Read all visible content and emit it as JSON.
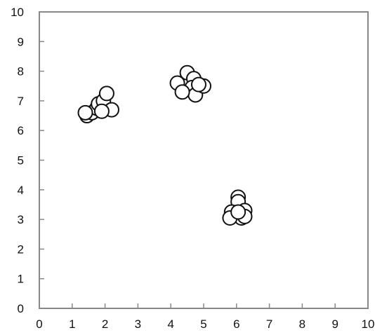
{
  "chart_data": {
    "type": "scatter",
    "title": "",
    "xlabel": "",
    "ylabel": "",
    "xlim": [
      0,
      10
    ],
    "ylim": [
      0,
      10
    ],
    "x_ticks": [
      "0",
      "1",
      "2",
      "3",
      "4",
      "5",
      "6",
      "7",
      "8",
      "9",
      "10"
    ],
    "y_ticks": [
      "0",
      "1",
      "2",
      "3",
      "4",
      "5",
      "6",
      "7",
      "8",
      "9",
      "10"
    ],
    "grid": false,
    "marker": "open-circle",
    "colors": {
      "marker_fill": "#ffffff",
      "marker_stroke": "#111111",
      "axis": "#888888"
    },
    "points": [
      {
        "x": 1.45,
        "y": 6.5
      },
      {
        "x": 1.6,
        "y": 6.6
      },
      {
        "x": 1.75,
        "y": 6.75
      },
      {
        "x": 1.8,
        "y": 6.9
      },
      {
        "x": 1.95,
        "y": 7.0
      },
      {
        "x": 2.05,
        "y": 7.25
      },
      {
        "x": 2.2,
        "y": 6.7
      },
      {
        "x": 1.9,
        "y": 6.65
      },
      {
        "x": 1.4,
        "y": 6.6
      },
      {
        "x": 4.2,
        "y": 7.6
      },
      {
        "x": 4.5,
        "y": 7.95
      },
      {
        "x": 4.7,
        "y": 7.75
      },
      {
        "x": 4.65,
        "y": 7.45
      },
      {
        "x": 4.75,
        "y": 7.2
      },
      {
        "x": 5.0,
        "y": 7.5
      },
      {
        "x": 4.85,
        "y": 7.55
      },
      {
        "x": 4.35,
        "y": 7.3
      },
      {
        "x": 6.05,
        "y": 3.75
      },
      {
        "x": 6.05,
        "y": 3.6
      },
      {
        "x": 5.85,
        "y": 3.25
      },
      {
        "x": 6.25,
        "y": 3.3
      },
      {
        "x": 6.15,
        "y": 3.05
      },
      {
        "x": 6.25,
        "y": 3.1
      },
      {
        "x": 5.8,
        "y": 3.05
      },
      {
        "x": 6.05,
        "y": 3.25
      }
    ]
  }
}
